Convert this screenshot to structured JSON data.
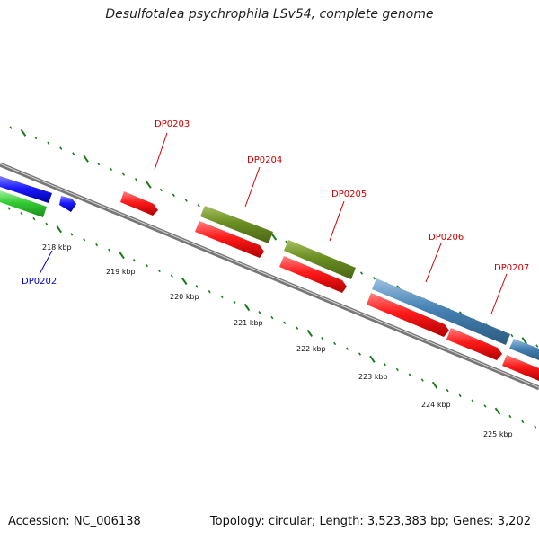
{
  "title": "Desulfotalea psychrophila LSv54, complete genome",
  "footer": {
    "accession": "Accession: NC_006138",
    "summary": "Topology: circular; Length: 3,523,383 bp; Genes: 3,202"
  },
  "colors": {
    "backbone": "#808080",
    "ticks": "#1a7a1a",
    "red_gene": "#ff1a1a",
    "blue_gene": "#1a1aff",
    "green_gene": "#33cc33",
    "olive_gene": "#6b8e23",
    "steel_gene": "#4682b4",
    "label_red": "#cc0000",
    "label_blue": "#0000cc"
  },
  "scale_labels": [
    "218 kbp",
    "219 kbp",
    "220 kbp",
    "221 kbp",
    "222 kbp",
    "223 kbp",
    "224 kbp",
    "225 kbp"
  ],
  "gene_labels": [
    {
      "text": "DP0202",
      "color": "label_blue"
    },
    {
      "text": "DP0203",
      "color": "label_red"
    },
    {
      "text": "DP0204",
      "color": "label_red"
    },
    {
      "text": "DP0205",
      "color": "label_red"
    },
    {
      "text": "DP0206",
      "color": "label_red"
    },
    {
      "text": "DP0207",
      "color": "label_red"
    }
  ]
}
